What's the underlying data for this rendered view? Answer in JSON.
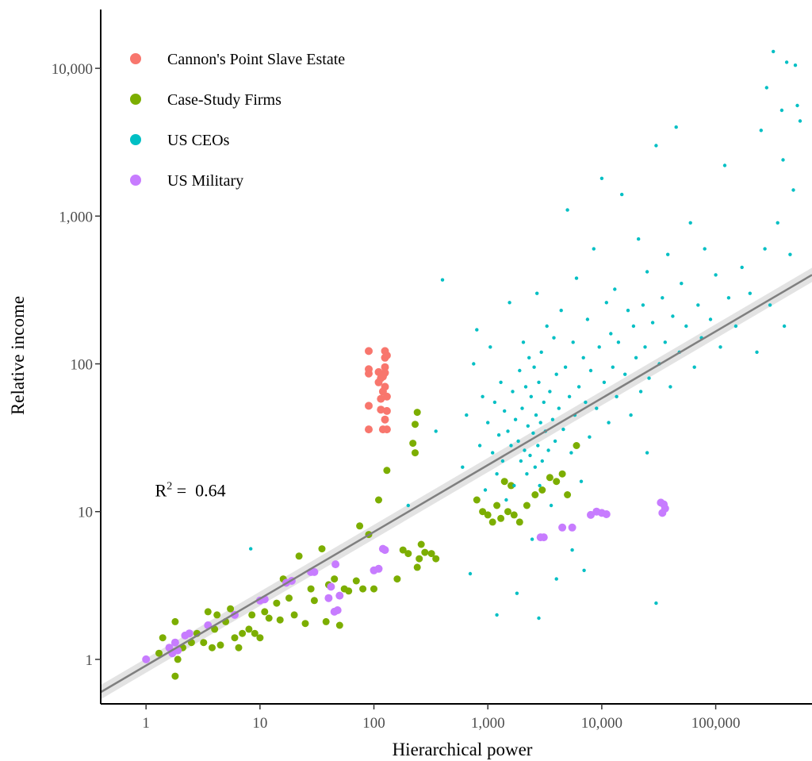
{
  "chart_data": {
    "type": "scatter",
    "title": "",
    "xlabel": "Hierarchical power",
    "ylabel": "Relative income",
    "x_scale": "log",
    "y_scale": "log",
    "xlim": [
      0.4,
      700000
    ],
    "ylim": [
      0.5,
      25000
    ],
    "x_ticks": [
      1,
      10,
      100,
      1000,
      10000,
      100000
    ],
    "x_tick_labels": [
      "1",
      "10",
      "100",
      "1,000",
      "10,000",
      "100,000"
    ],
    "y_ticks": [
      1,
      10,
      100,
      1000,
      10000
    ],
    "y_tick_labels": [
      "1",
      "10",
      "100",
      "1,000",
      "10,000"
    ],
    "grid": false,
    "legend_position": "top-left",
    "annotation": {
      "base": "R",
      "sup": "2",
      "rest": " =  0.64",
      "x": 1.2,
      "y": 14
    },
    "fit_line": {
      "type": "linear-log-log",
      "points": [
        [
          0.4,
          0.6
        ],
        [
          700000,
          400
        ]
      ],
      "color": "#7f7f7f",
      "band_color": "#d0d0d0"
    },
    "series": [
      {
        "name": "Cannon's Point Slave Estate",
        "color": "#F8766D",
        "points": [
          [
            90,
            122
          ],
          [
            90,
            92
          ],
          [
            90,
            86
          ],
          [
            90,
            52
          ],
          [
            90,
            36
          ],
          [
            115,
            80
          ],
          [
            115,
            49
          ],
          [
            120,
            36
          ],
          [
            125,
            122
          ],
          [
            125,
            110
          ],
          [
            125,
            95
          ],
          [
            125,
            87
          ],
          [
            125,
            70
          ],
          [
            130,
            60
          ],
          [
            130,
            48
          ],
          [
            130,
            36
          ],
          [
            110,
            88
          ],
          [
            120,
            82
          ],
          [
            110,
            75
          ],
          [
            120,
            65
          ],
          [
            130,
            114
          ],
          [
            115,
            58
          ],
          [
            125,
            42
          ]
        ]
      },
      {
        "name": "Case-Study Firms",
        "color": "#7CAE00",
        "points": [
          [
            1.3,
            1.1
          ],
          [
            1.4,
            1.4
          ],
          [
            1.8,
            0.77
          ],
          [
            1.8,
            1.8
          ],
          [
            1.9,
            1.0
          ],
          [
            2.1,
            1.2
          ],
          [
            2.5,
            1.3
          ],
          [
            2.8,
            1.5
          ],
          [
            3.2,
            1.3
          ],
          [
            3.5,
            2.1
          ],
          [
            3.8,
            1.2
          ],
          [
            4.0,
            1.6
          ],
          [
            4.2,
            2.0
          ],
          [
            4.5,
            1.25
          ],
          [
            5.0,
            1.8
          ],
          [
            5.5,
            2.2
          ],
          [
            6.0,
            1.4
          ],
          [
            6.5,
            1.2
          ],
          [
            7.0,
            1.5
          ],
          [
            8.0,
            1.6
          ],
          [
            8.5,
            2.0
          ],
          [
            9.0,
            1.5
          ],
          [
            10,
            1.4
          ],
          [
            11,
            2.1
          ],
          [
            12,
            1.9
          ],
          [
            14,
            2.4
          ],
          [
            15,
            1.85
          ],
          [
            16,
            3.5
          ],
          [
            18,
            2.6
          ],
          [
            20,
            2.0
          ],
          [
            22,
            5.0
          ],
          [
            25,
            1.75
          ],
          [
            28,
            3.0
          ],
          [
            30,
            2.5
          ],
          [
            35,
            5.6
          ],
          [
            38,
            1.8
          ],
          [
            40,
            3.2
          ],
          [
            45,
            3.5
          ],
          [
            50,
            1.7
          ],
          [
            55,
            3.0
          ],
          [
            60,
            2.9
          ],
          [
            70,
            3.4
          ],
          [
            75,
            8.0
          ],
          [
            80,
            3.0
          ],
          [
            90,
            7.0
          ],
          [
            100,
            3.0
          ],
          [
            110,
            12
          ],
          [
            130,
            19
          ],
          [
            160,
            3.5
          ],
          [
            180,
            5.5
          ],
          [
            200,
            5.2
          ],
          [
            220,
            29
          ],
          [
            230,
            25
          ],
          [
            240,
            4.2
          ],
          [
            250,
            4.8
          ],
          [
            260,
            6.0
          ],
          [
            280,
            5.3
          ],
          [
            320,
            5.2
          ],
          [
            350,
            4.8
          ],
          [
            800,
            12
          ],
          [
            900,
            10
          ],
          [
            1000,
            9.5
          ],
          [
            1100,
            8.5
          ],
          [
            1200,
            11
          ],
          [
            1400,
            16
          ],
          [
            1500,
            10
          ],
          [
            1700,
            9.5
          ],
          [
            1900,
            8.5
          ],
          [
            2200,
            11
          ],
          [
            2600,
            13
          ],
          [
            3000,
            14
          ],
          [
            3500,
            17
          ],
          [
            4000,
            16
          ],
          [
            5000,
            13
          ],
          [
            6000,
            28
          ],
          [
            4500,
            18
          ],
          [
            1300,
            9.0
          ],
          [
            1600,
            15
          ],
          [
            240,
            47
          ],
          [
            230,
            39
          ]
        ]
      },
      {
        "name": "US CEOs",
        "color": "#00BFC4",
        "points": [
          [
            8.3,
            5.6
          ],
          [
            200,
            11
          ],
          [
            350,
            35
          ],
          [
            400,
            370
          ],
          [
            600,
            20
          ],
          [
            650,
            45
          ],
          [
            700,
            3.8
          ],
          [
            750,
            100
          ],
          [
            800,
            170
          ],
          [
            850,
            28
          ],
          [
            900,
            60
          ],
          [
            950,
            14
          ],
          [
            1000,
            40
          ],
          [
            1050,
            130
          ],
          [
            1100,
            25
          ],
          [
            1150,
            55
          ],
          [
            1200,
            18
          ],
          [
            1250,
            33
          ],
          [
            1300,
            75
          ],
          [
            1350,
            22
          ],
          [
            1400,
            48
          ],
          [
            1450,
            12
          ],
          [
            1500,
            35
          ],
          [
            1550,
            260
          ],
          [
            1600,
            28
          ],
          [
            1650,
            65
          ],
          [
            1700,
            15
          ],
          [
            1750,
            42
          ],
          [
            1800,
            2.8
          ],
          [
            1850,
            30
          ],
          [
            1900,
            90
          ],
          [
            1950,
            22
          ],
          [
            2000,
            50
          ],
          [
            2050,
            140
          ],
          [
            2100,
            26
          ],
          [
            2150,
            70
          ],
          [
            2200,
            18
          ],
          [
            2250,
            38
          ],
          [
            2300,
            110
          ],
          [
            2350,
            24
          ],
          [
            2400,
            60
          ],
          [
            2450,
            6.5
          ],
          [
            2500,
            34
          ],
          [
            2550,
            95
          ],
          [
            2600,
            20
          ],
          [
            2650,
            45
          ],
          [
            2700,
            300
          ],
          [
            2750,
            28
          ],
          [
            2800,
            75
          ],
          [
            2850,
            15
          ],
          [
            2900,
            40
          ],
          [
            2950,
            120
          ],
          [
            3000,
            22
          ],
          [
            3100,
            55
          ],
          [
            3200,
            35
          ],
          [
            3300,
            180
          ],
          [
            3400,
            26
          ],
          [
            3500,
            65
          ],
          [
            3600,
            11
          ],
          [
            3700,
            42
          ],
          [
            3800,
            150
          ],
          [
            3900,
            30
          ],
          [
            4000,
            85
          ],
          [
            4200,
            50
          ],
          [
            4400,
            230
          ],
          [
            4600,
            36
          ],
          [
            4800,
            95
          ],
          [
            5000,
            1100
          ],
          [
            5200,
            60
          ],
          [
            5400,
            25
          ],
          [
            5600,
            140
          ],
          [
            5800,
            45
          ],
          [
            6000,
            380
          ],
          [
            6300,
            70
          ],
          [
            6600,
            16
          ],
          [
            6900,
            110
          ],
          [
            7200,
            55
          ],
          [
            7500,
            200
          ],
          [
            7800,
            32
          ],
          [
            8000,
            90
          ],
          [
            8500,
            600
          ],
          [
            9000,
            50
          ],
          [
            9500,
            130
          ],
          [
            10000,
            1800
          ],
          [
            10500,
            75
          ],
          [
            11000,
            260
          ],
          [
            11500,
            40
          ],
          [
            12000,
            160
          ],
          [
            12500,
            95
          ],
          [
            13000,
            320
          ],
          [
            13500,
            60
          ],
          [
            14000,
            140
          ],
          [
            15000,
            1400
          ],
          [
            16000,
            85
          ],
          [
            17000,
            230
          ],
          [
            18000,
            45
          ],
          [
            19000,
            180
          ],
          [
            20000,
            110
          ],
          [
            21000,
            700
          ],
          [
            22000,
            65
          ],
          [
            23000,
            250
          ],
          [
            24000,
            130
          ],
          [
            25000,
            420
          ],
          [
            26000,
            80
          ],
          [
            28000,
            190
          ],
          [
            30000,
            3000
          ],
          [
            32000,
            100
          ],
          [
            34000,
            280
          ],
          [
            36000,
            140
          ],
          [
            38000,
            550
          ],
          [
            40000,
            70
          ],
          [
            42000,
            210
          ],
          [
            45000,
            4000
          ],
          [
            48000,
            120
          ],
          [
            50000,
            350
          ],
          [
            55000,
            180
          ],
          [
            60000,
            900
          ],
          [
            65000,
            95
          ],
          [
            70000,
            250
          ],
          [
            75000,
            150
          ],
          [
            80000,
            600
          ],
          [
            90000,
            200
          ],
          [
            100000,
            400
          ],
          [
            110000,
            130
          ],
          [
            120000,
            2200
          ],
          [
            130000,
            280
          ],
          [
            150000,
            180
          ],
          [
            170000,
            450
          ],
          [
            200000,
            300
          ],
          [
            230000,
            120
          ],
          [
            250000,
            3800
          ],
          [
            270000,
            600
          ],
          [
            300000,
            250
          ],
          [
            320000,
            13000
          ],
          [
            350000,
            900
          ],
          [
            380000,
            5200
          ],
          [
            400000,
            180
          ],
          [
            420000,
            11000
          ],
          [
            450000,
            550
          ],
          [
            480000,
            1500
          ],
          [
            500000,
            10500
          ],
          [
            520000,
            5600
          ],
          [
            550000,
            4400
          ],
          [
            280000,
            7400
          ],
          [
            390000,
            2400
          ],
          [
            2800,
            1.9
          ],
          [
            1200,
            2.0
          ],
          [
            30000,
            2.4
          ],
          [
            25000,
            25
          ],
          [
            5500,
            5.5
          ],
          [
            7000,
            4.0
          ],
          [
            4000,
            3.5
          ]
        ]
      },
      {
        "name": "US Military",
        "color": "#C77CFF",
        "points": [
          [
            1.0,
            1.0
          ],
          [
            1.6,
            1.2
          ],
          [
            1.7,
            1.1
          ],
          [
            1.8,
            1.3
          ],
          [
            1.9,
            1.15
          ],
          [
            2.2,
            1.45
          ],
          [
            2.4,
            1.5
          ],
          [
            3.5,
            1.7
          ],
          [
            6.0,
            2.0
          ],
          [
            10,
            2.5
          ],
          [
            11,
            2.55
          ],
          [
            17,
            3.3
          ],
          [
            19,
            3.4
          ],
          [
            28,
            3.9
          ],
          [
            30,
            3.9
          ],
          [
            40,
            2.6
          ],
          [
            45,
            2.1
          ],
          [
            48,
            2.15
          ],
          [
            50,
            2.7
          ],
          [
            42,
            3.1
          ],
          [
            46,
            4.4
          ],
          [
            100,
            4.0
          ],
          [
            110,
            4.1
          ],
          [
            120,
            5.6
          ],
          [
            125,
            5.5
          ],
          [
            2900,
            6.7
          ],
          [
            3100,
            6.7
          ],
          [
            4500,
            7.8
          ],
          [
            5500,
            7.8
          ],
          [
            8000,
            9.5
          ],
          [
            9000,
            10
          ],
          [
            10000,
            9.8
          ],
          [
            11000,
            9.6
          ],
          [
            33000,
            11.5
          ],
          [
            35000,
            11.2
          ],
          [
            36000,
            10.5
          ],
          [
            34000,
            9.8
          ]
        ]
      }
    ]
  }
}
